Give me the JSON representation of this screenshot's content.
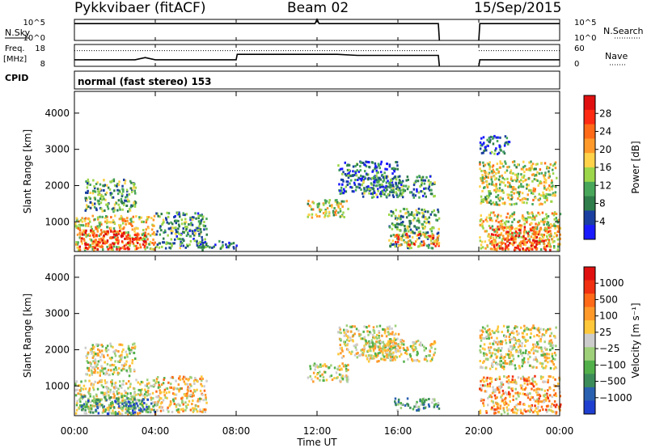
{
  "header": {
    "radar": "Pykkvibaer (fitACF)",
    "beam": "Beam 02",
    "date": "15/Sep/2015"
  },
  "labels": {
    "nsky": "N.Sky",
    "nsearch": "N.Search",
    "freq_line1": "Freq.",
    "freq_line2": "[MHz]",
    "nave": "Nave",
    "cpid": "CPID",
    "cpid_value": "normal (fast stereo) 153",
    "noise_ticks_left": [
      "10^5",
      "10^0"
    ],
    "noise_ticks_right": [
      "10^5",
      "10^0"
    ],
    "freq_ticks_left": [
      "18",
      "8"
    ],
    "freq_ticks_right": [
      "60",
      "0"
    ]
  },
  "chart_data": [
    {
      "type": "line",
      "panel": "noise",
      "series": [
        {
          "name": "N.Sky",
          "style": "solid",
          "x": [
            0,
            2,
            4,
            6,
            8,
            10,
            11.9,
            12,
            12.1,
            14,
            16,
            18,
            18.05
          ],
          "y": [
            0.8,
            0.8,
            0.8,
            0.8,
            0.8,
            0.8,
            0.8,
            1.0,
            0.8,
            0.8,
            0.8,
            0.8,
            0.0
          ]
        },
        {
          "name": "N.Sky (after gap)",
          "style": "solid",
          "x": [
            20.0,
            20.05,
            22,
            24
          ],
          "y": [
            0.0,
            0.8,
            0.8,
            0.8
          ]
        }
      ],
      "gap_hours": [
        18.05,
        20.0
      ],
      "xlim": [
        0,
        24
      ]
    },
    {
      "type": "line",
      "panel": "frequency",
      "series": [
        {
          "name": "Freq",
          "style": "solid",
          "x": [
            0,
            3,
            3.5,
            4,
            8,
            8.05,
            13,
            14,
            18,
            18.05
          ],
          "y": [
            0.3,
            0.3,
            0.4,
            0.3,
            0.3,
            0.55,
            0.55,
            0.5,
            0.5,
            0.0
          ]
        },
        {
          "name": "Nave",
          "style": "dotted",
          "x": [
            0,
            18
          ],
          "y": [
            0.72,
            0.72
          ]
        },
        {
          "name": "Freq (after gap)",
          "style": "solid",
          "x": [
            20.0,
            20.05,
            24
          ],
          "y": [
            0.0,
            0.3,
            0.3
          ]
        },
        {
          "name": "Nave (after gap)",
          "style": "dotted",
          "x": [
            20.0,
            24
          ],
          "y": [
            0.72,
            0.72
          ]
        }
      ],
      "xlim": [
        0,
        24
      ]
    },
    {
      "type": "heatmap",
      "panel": "power",
      "xlabel": "",
      "ylabel": "Slant Range [km]",
      "xlim": [
        0,
        24
      ],
      "ylim": [
        180,
        4600
      ],
      "yticks": [
        1000,
        2000,
        3000,
        4000
      ],
      "colorbar": {
        "label": "Power [dB]",
        "ticks": [
          "28",
          "24",
          "20",
          "16",
          "12",
          "8",
          "4"
        ],
        "colors": [
          "#1a1aff",
          "#1a3fa0",
          "#2e7d4a",
          "#48a65a",
          "#9cd64a",
          "#ffd24a",
          "#ff9a2a",
          "#ff6a18",
          "#ff2a12",
          "#e01010"
        ],
        "range": [
          0,
          32
        ]
      },
      "echo_regions": [
        {
          "x": [
            0.0,
            4.0
          ],
          "r": [
            250,
            1200
          ],
          "level": 0.55
        },
        {
          "x": [
            0.2,
            2.5
          ],
          "r": [
            250,
            800
          ],
          "level": 0.85
        },
        {
          "x": [
            2.5,
            3.5
          ],
          "r": [
            250,
            700
          ],
          "level": 0.9
        },
        {
          "x": [
            0.5,
            3.0
          ],
          "r": [
            1300,
            2200
          ],
          "level": 0.35
        },
        {
          "x": [
            4.0,
            6.5
          ],
          "r": [
            300,
            1300
          ],
          "level": 0.3
        },
        {
          "x": [
            6.0,
            8.0
          ],
          "r": [
            250,
            500
          ],
          "level": 0.25
        },
        {
          "x": [
            11.5,
            13.5
          ],
          "r": [
            1150,
            1650
          ],
          "level": 0.5
        },
        {
          "x": [
            13.0,
            16.0
          ],
          "r": [
            1800,
            2700
          ],
          "level": 0.2
        },
        {
          "x": [
            14.2,
            17.8
          ],
          "r": [
            1700,
            2300
          ],
          "level": 0.3
        },
        {
          "x": [
            15.5,
            18.0
          ],
          "r": [
            300,
            1400
          ],
          "level": 0.35
        },
        {
          "x": [
            15.8,
            18.0
          ],
          "r": [
            350,
            700
          ],
          "level": 0.7
        },
        {
          "x": [
            20.0,
            23.8
          ],
          "r": [
            1500,
            2700
          ],
          "level": 0.5
        },
        {
          "x": [
            20.0,
            24.0
          ],
          "r": [
            250,
            1300
          ],
          "level": 0.55
        },
        {
          "x": [
            20.5,
            23.5
          ],
          "r": [
            250,
            900
          ],
          "level": 0.8
        },
        {
          "x": [
            20.0,
            21.5
          ],
          "r": [
            2900,
            3400
          ],
          "level": 0.2
        }
      ]
    },
    {
      "type": "heatmap",
      "panel": "velocity",
      "xlabel": "Time UT",
      "ylabel": "Slant Range [km]",
      "xlim": [
        0,
        24
      ],
      "ylim": [
        180,
        4600
      ],
      "yticks": [
        1000,
        2000,
        3000,
        4000
      ],
      "xticks": [
        "00:00",
        "04:00",
        "08:00",
        "12:00",
        "16:00",
        "20:00",
        "00:00"
      ],
      "colorbar": {
        "label": "Velocity [m s⁻¹]",
        "ticks": [
          "1000",
          "500",
          "100",
          "25",
          "−25",
          "−100",
          "−500",
          "−1000"
        ],
        "colors": [
          "#1f3fd0",
          "#2a60b0",
          "#3c8c5a",
          "#52b04a",
          "#9ed07a",
          "#cccccc",
          "#ffc83a",
          "#ff9a2a",
          "#ff6a18",
          "#f03010",
          "#e01010"
        ],
        "range": [
          -1200,
          1200
        ]
      },
      "echo_regions": [
        {
          "x": [
            0.0,
            4.0
          ],
          "r": [
            250,
            1200
          ],
          "level": 0.5
        },
        {
          "x": [
            0.2,
            3.0
          ],
          "r": [
            250,
            750
          ],
          "level": 0.25
        },
        {
          "x": [
            2.5,
            4.0
          ],
          "r": [
            250,
            700
          ],
          "level": 0.2
        },
        {
          "x": [
            0.5,
            3.0
          ],
          "r": [
            1300,
            2200
          ],
          "level": 0.5
        },
        {
          "x": [
            4.0,
            6.5
          ],
          "r": [
            300,
            1300
          ],
          "level": 0.55
        },
        {
          "x": [
            11.5,
            13.5
          ],
          "r": [
            1150,
            1650
          ],
          "level": 0.5
        },
        {
          "x": [
            13.0,
            16.0
          ],
          "r": [
            1800,
            2700
          ],
          "level": 0.5
        },
        {
          "x": [
            14.2,
            17.8
          ],
          "r": [
            1700,
            2300
          ],
          "level": 0.5
        },
        {
          "x": [
            15.8,
            18.0
          ],
          "r": [
            350,
            700
          ],
          "level": 0.3
        },
        {
          "x": [
            20.0,
            23.8
          ],
          "r": [
            1500,
            2700
          ],
          "level": 0.5
        },
        {
          "x": [
            20.0,
            24.0
          ],
          "r": [
            250,
            1300
          ],
          "level": 0.65
        }
      ]
    }
  ]
}
